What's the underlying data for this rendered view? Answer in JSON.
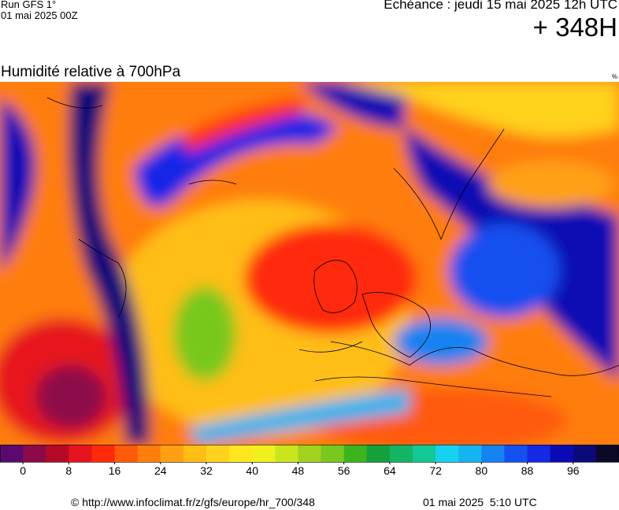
{
  "header": {
    "run": "Run GFS 1°",
    "run_date": "01 mai 2025 00Z",
    "valid": "Echéance : jeudi 15 mai 2025 12h UTC",
    "lead": "+ 348H"
  },
  "map": {
    "title": "Humidité relative à 700hPa",
    "unit": "%"
  },
  "colorbar": {
    "range": [
      -4,
      104
    ],
    "ticks": [
      0,
      8,
      16,
      24,
      32,
      40,
      48,
      56,
      64,
      72,
      80,
      88,
      96
    ],
    "colors": [
      "#5a0a6e",
      "#8c0a4a",
      "#b40a28",
      "#e6141e",
      "#ff2a0a",
      "#ff5a0a",
      "#ff7d0a",
      "#ffa014",
      "#ffbe14",
      "#ffd21e",
      "#ffe61e",
      "#f0f01e",
      "#c8e61e",
      "#a0d21e",
      "#78c81e",
      "#3cb41e",
      "#14a03c",
      "#14b464",
      "#14c896",
      "#14d2f0",
      "#14b4f0",
      "#1482f0",
      "#1450f0",
      "#1428e6",
      "#0a0ab4",
      "#0a0a78",
      "#0a0a28"
    ]
  },
  "footer": {
    "source": "© http://www.infoclimat.fr/z/gfs/europe/hr_700/348",
    "generated": "01 mai 2025  5:10 UTC"
  }
}
